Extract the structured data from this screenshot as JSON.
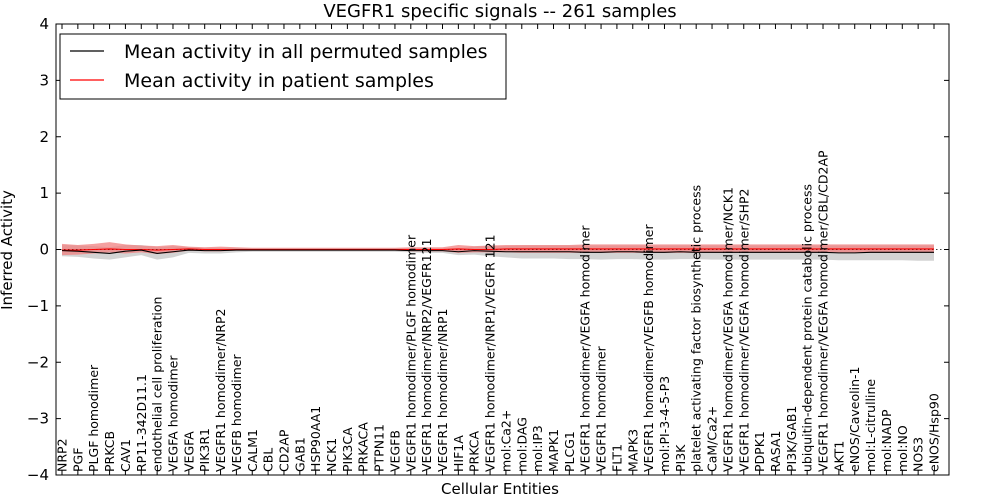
{
  "chart_data": {
    "type": "line",
    "title": "VEGFR1 specific signals -- 261 samples",
    "xlabel": "Cellular Entities",
    "ylabel": "Inferred Activity",
    "ylim": [
      -4,
      4
    ],
    "yticks": [
      4,
      3,
      2,
      1,
      0,
      -1,
      -2,
      -3,
      -4
    ],
    "ytick_labels": [
      "4",
      "3",
      "2",
      "1",
      "0",
      "−1",
      "−2",
      "−3",
      "−4"
    ],
    "zero_line": "dotted",
    "legend": {
      "placement": "top-left",
      "entries": [
        {
          "label": "Mean activity in all permuted samples",
          "color": "#000000"
        },
        {
          "label": "Mean activity in patient samples",
          "color": "#ff0000"
        }
      ]
    },
    "categories": [
      "NRP2",
      "PGF",
      "PLGF homodimer",
      "PRKCB",
      "CAV1",
      "RP11-342D11.1",
      "endothelial cell proliferation",
      "VEGFA homodimer",
      "VEGFA",
      "PIK3R1",
      "VEGFR1 homodimer/NRP2",
      "VEGFB homodimer",
      "CALM1",
      "CBL",
      "CD2AP",
      "GAB1",
      "HSP90AA1",
      "NCK1",
      "PIK3CA",
      "PRKACA",
      "PTPN11",
      "VEGFB",
      "VEGFR1 homodimer/PLGF homodimer",
      "VEGFR1 homodimer/NRP2/VEGFR121",
      "VEGFR1 homodimer/NRP1",
      "HIF1A",
      "PRKCA",
      "VEGFR1 homodimer/NRP1/VEGFR 121",
      "mol:Ca2+",
      "mol:DAG",
      "mol:IP3",
      "MAPK1",
      "PLCG1",
      "VEGFR1 homodimer/VEGFA homodimer",
      "VEGFR1 homodimer",
      "FLT1",
      "MAPK3",
      "VEGFR1 homodimer/VEGFB homodimer",
      "mol:PI-3-4-5-P3",
      "PI3K",
      "platelet activating factor biosynthetic process",
      "CaM/Ca2+",
      "VEGFR1 homodimer/VEGFA homodimer/NCK1",
      "VEGFR1 homodimer/VEGFA homodimer/SHP2",
      "PDPK1",
      "RASA1",
      "PI3K/GAB1",
      "ubiquitin-dependent protein catabolic process",
      "VEGFR1 homodimer/VEGFA homodimer/CBL/CD2AP",
      "AKT1",
      "eNOS/Caveolin-1",
      "mol:L-citrulline",
      "mol:NADP",
      "mol:NO",
      "NOS3",
      "eNOS/Hsp90"
    ],
    "series": [
      {
        "name": "Mean activity in patient samples",
        "color": "#ff0000",
        "band_color": "#f08080",
        "values": [
          -0.01,
          -0.01,
          0.0,
          0.01,
          0.0,
          0.0,
          -0.01,
          0.0,
          0.01,
          0.0,
          0.0,
          0.0,
          0.0,
          0.0,
          0.0,
          0.0,
          0.0,
          0.0,
          0.0,
          0.0,
          0.0,
          0.0,
          0.0,
          0.0,
          0.0,
          0.01,
          0.0,
          0.0,
          0.01,
          0.01,
          0.01,
          0.01,
          0.01,
          0.01,
          0.01,
          0.01,
          0.01,
          0.01,
          0.01,
          0.01,
          0.01,
          0.01,
          0.01,
          0.01,
          0.01,
          0.01,
          0.01,
          0.01,
          0.01,
          0.01,
          0.01,
          0.01,
          0.01,
          0.01,
          0.01,
          0.01
        ],
        "lower": [
          -0.1,
          -0.09,
          -0.07,
          -0.05,
          -0.07,
          -0.05,
          -0.08,
          -0.06,
          -0.02,
          -0.03,
          -0.03,
          -0.02,
          -0.02,
          -0.02,
          -0.02,
          -0.02,
          -0.02,
          -0.02,
          -0.02,
          -0.02,
          -0.02,
          -0.02,
          -0.03,
          -0.03,
          -0.03,
          -0.06,
          -0.05,
          -0.05,
          -0.05,
          -0.06,
          -0.06,
          -0.06,
          -0.06,
          -0.06,
          -0.06,
          -0.06,
          -0.06,
          -0.06,
          -0.06,
          -0.06,
          -0.06,
          -0.06,
          -0.06,
          -0.06,
          -0.06,
          -0.06,
          -0.06,
          -0.06,
          -0.06,
          -0.06,
          -0.06,
          -0.06,
          -0.06,
          -0.06,
          -0.06,
          -0.06
        ],
        "upper": [
          0.1,
          0.08,
          0.1,
          0.13,
          0.09,
          0.07,
          0.06,
          0.08,
          0.05,
          0.04,
          0.05,
          0.04,
          0.03,
          0.03,
          0.03,
          0.03,
          0.03,
          0.03,
          0.03,
          0.03,
          0.03,
          0.03,
          0.04,
          0.04,
          0.04,
          0.08,
          0.06,
          0.07,
          0.08,
          0.08,
          0.08,
          0.08,
          0.08,
          0.09,
          0.09,
          0.09,
          0.09,
          0.09,
          0.09,
          0.09,
          0.09,
          0.09,
          0.09,
          0.09,
          0.09,
          0.09,
          0.09,
          0.09,
          0.09,
          0.09,
          0.09,
          0.09,
          0.09,
          0.09,
          0.09,
          0.09
        ]
      },
      {
        "name": "Mean activity in all permuted samples",
        "color": "#000000",
        "band_color": "#c8c8c8",
        "values": [
          -0.02,
          -0.03,
          -0.05,
          -0.07,
          -0.03,
          -0.01,
          -0.07,
          -0.04,
          -0.01,
          -0.02,
          -0.02,
          -0.01,
          -0.01,
          -0.01,
          -0.01,
          -0.01,
          -0.01,
          -0.01,
          -0.01,
          -0.01,
          -0.01,
          -0.01,
          -0.02,
          -0.02,
          -0.02,
          -0.04,
          -0.02,
          -0.03,
          -0.04,
          -0.04,
          -0.04,
          -0.04,
          -0.04,
          -0.05,
          -0.05,
          -0.04,
          -0.04,
          -0.05,
          -0.05,
          -0.04,
          -0.05,
          -0.05,
          -0.05,
          -0.05,
          -0.05,
          -0.05,
          -0.05,
          -0.05,
          -0.05,
          -0.06,
          -0.06,
          -0.05,
          -0.05,
          -0.05,
          -0.05,
          -0.05
        ],
        "lower": [
          -0.12,
          -0.13,
          -0.16,
          -0.18,
          -0.14,
          -0.1,
          -0.18,
          -0.14,
          -0.06,
          -0.07,
          -0.07,
          -0.05,
          -0.04,
          -0.04,
          -0.04,
          -0.04,
          -0.04,
          -0.04,
          -0.04,
          -0.04,
          -0.04,
          -0.04,
          -0.05,
          -0.06,
          -0.06,
          -0.1,
          -0.09,
          -0.12,
          -0.14,
          -0.16,
          -0.16,
          -0.16,
          -0.17,
          -0.17,
          -0.18,
          -0.17,
          -0.17,
          -0.18,
          -0.18,
          -0.17,
          -0.17,
          -0.18,
          -0.18,
          -0.18,
          -0.18,
          -0.18,
          -0.18,
          -0.18,
          -0.18,
          -0.19,
          -0.19,
          -0.19,
          -0.19,
          -0.19,
          -0.2,
          -0.2
        ],
        "upper": [
          0.08,
          0.07,
          0.06,
          0.04,
          0.08,
          0.08,
          0.04,
          0.06,
          0.04,
          0.03,
          0.03,
          0.03,
          0.02,
          0.02,
          0.02,
          0.02,
          0.02,
          0.02,
          0.02,
          0.02,
          0.02,
          0.02,
          0.02,
          0.02,
          0.02,
          0.02,
          0.05,
          0.06,
          0.06,
          0.07,
          0.07,
          0.07,
          0.07,
          0.07,
          0.07,
          0.07,
          0.07,
          0.07,
          0.07,
          0.07,
          0.07,
          0.07,
          0.07,
          0.07,
          0.07,
          0.07,
          0.07,
          0.07,
          0.07,
          0.07,
          0.07,
          0.07,
          0.07,
          0.07,
          0.07,
          0.07
        ]
      }
    ]
  }
}
